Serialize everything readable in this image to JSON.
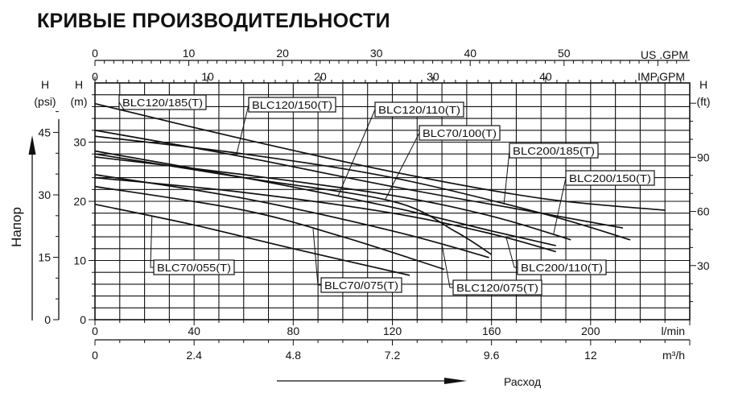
{
  "page": {
    "title": "КРИВЫЕ ПРОИЗВОДИТЕЛЬНОСТИ"
  },
  "chart_data": {
    "type": "line",
    "title": "КРИВЫЕ ПРОИЗВОДИТЕЛЬНОСТИ",
    "ylabel": "Напор",
    "xlabel": "Расход",
    "x_unit": "l/min",
    "y_unit": "m",
    "xlim": [
      0,
      240
    ],
    "ylim": [
      0,
      40
    ],
    "grid": true,
    "axes": {
      "x_lmin": {
        "unit": "l/min",
        "ticks": [
          "0",
          "40",
          "80",
          "120",
          "160",
          "200"
        ],
        "values": [
          0,
          40,
          80,
          120,
          160,
          200
        ]
      },
      "x_m3h": {
        "unit": "m³/h",
        "ticks": [
          "0",
          "2.4",
          "4.8",
          "7.2",
          "9.6",
          "12"
        ],
        "values": [
          0,
          40,
          80,
          120,
          160,
          200
        ]
      },
      "x_usgpm": {
        "unit": "US .GPM",
        "ticks": [
          "0",
          "10",
          "20",
          "30",
          "40",
          "50"
        ],
        "values": [
          0,
          10,
          20,
          30,
          40,
          50
        ]
      },
      "x_impgpm": {
        "unit": "IMP.GPM",
        "ticks": [
          "0",
          "10",
          "20",
          "30",
          "40"
        ],
        "values": [
          0,
          10,
          20,
          30,
          40
        ]
      },
      "y_m": {
        "header": "H",
        "unit": "(m)",
        "ticks": [
          "0",
          "10",
          "20",
          "30"
        ],
        "values": [
          0,
          10,
          20,
          30
        ]
      },
      "y_psi": {
        "header": "H",
        "unit": "(psi)",
        "ticks": [
          "0",
          "15",
          "30",
          "45"
        ],
        "values": [
          0,
          15,
          30,
          45
        ]
      },
      "y_ft": {
        "header": "H",
        "unit": "(ft)",
        "ticks": [
          "30",
          "60",
          "90"
        ],
        "values": [
          30,
          60,
          90
        ]
      }
    },
    "series": [
      {
        "name": "BLC120/185(T)",
        "x": [
          0,
          60,
          120,
          180,
          230
        ],
        "y": [
          36.5,
          30.5,
          25,
          20.5,
          18.5
        ]
      },
      {
        "name": "BLC120/150(T)",
        "x": [
          0,
          60,
          120,
          180,
          213
        ],
        "y": [
          32,
          27.5,
          22.5,
          18,
          15.5
        ]
      },
      {
        "name": "BLC120/110(T)",
        "x": [
          0,
          60,
          120,
          160,
          186
        ],
        "y": [
          28.5,
          24,
          19,
          15,
          12.5
        ]
      },
      {
        "name": "BLC70/100(T)",
        "x": [
          0,
          60,
          120,
          145,
          160
        ],
        "y": [
          28,
          24,
          20,
          15,
          11
        ]
      },
      {
        "name": "BLC200/185(T)",
        "x": [
          0,
          60,
          120,
          180,
          216
        ],
        "y": [
          31,
          28,
          24,
          18,
          13.5
        ]
      },
      {
        "name": "BLC200/150(T)",
        "x": [
          0,
          60,
          120,
          160,
          192
        ],
        "y": [
          27.5,
          24.5,
          21,
          17.5,
          13.5
        ]
      },
      {
        "name": "BLC200/110(T)",
        "x": [
          0,
          60,
          120,
          160,
          186
        ],
        "y": [
          24,
          21.5,
          18,
          14.5,
          11.5
        ]
      },
      {
        "name": "BLC70/055(T)",
        "x": [
          0,
          40,
          80,
          127
        ],
        "y": [
          19.5,
          16,
          12,
          7.5
        ]
      },
      {
        "name": "BLC70/075(T)",
        "x": [
          0,
          60,
          100,
          141
        ],
        "y": [
          22.5,
          18.5,
          14,
          8.5
        ]
      },
      {
        "name": "BLC120/075(T)",
        "x": [
          0,
          60,
          120,
          159
        ],
        "y": [
          24.5,
          20.5,
          15,
          10.5
        ]
      }
    ]
  },
  "colors": {
    "line": "#111111",
    "grid": "#111111",
    "background": "#ffffff"
  }
}
